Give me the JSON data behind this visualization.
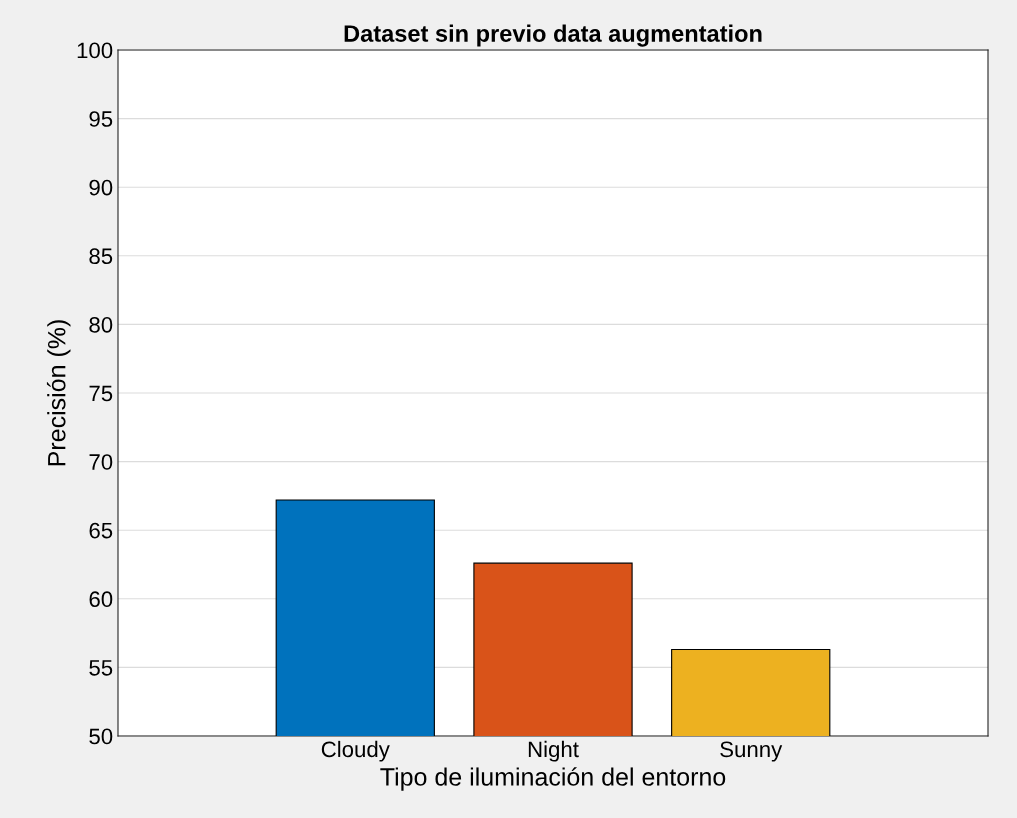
{
  "chart_data": {
    "type": "bar",
    "title": "Dataset sin previo data augmentation",
    "xlabel": "Tipo de iluminación del entorno",
    "ylabel": "Precisión (%)",
    "categories": [
      "Cloudy",
      "Night",
      "Sunny"
    ],
    "values": [
      67.2,
      62.6,
      56.3
    ],
    "colors": [
      "#0072bd",
      "#d95319",
      "#edb120"
    ],
    "ylim": [
      50,
      100
    ],
    "yticks": [
      50,
      55,
      60,
      65,
      70,
      75,
      80,
      85,
      90,
      95,
      100
    ],
    "grid": "y",
    "legend": false
  }
}
